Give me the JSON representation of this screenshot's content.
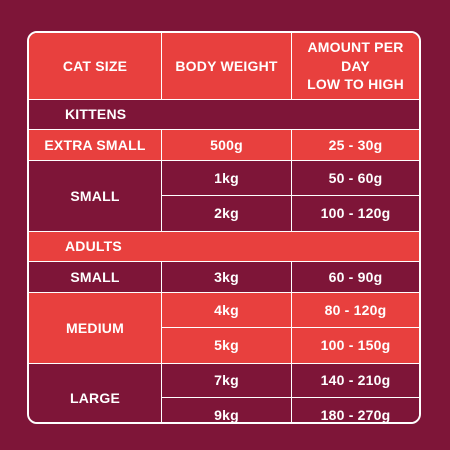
{
  "headers": {
    "cat_size": "CAT SIZE",
    "body_weight": "BODY WEIGHT",
    "amount_line1": "AMOUNT PER DAY",
    "amount_line2": "LOW TO HIGH"
  },
  "sections": {
    "kittens": "KITTENS",
    "adults": "ADULTS"
  },
  "kittens": [
    {
      "size": "EXTRA SMALL",
      "rows": [
        {
          "weight": "500g",
          "amount": "25 - 30g"
        }
      ]
    },
    {
      "size": "SMALL",
      "rows": [
        {
          "weight": "1kg",
          "amount": "50 - 60g"
        },
        {
          "weight": "2kg",
          "amount": "100 - 120g"
        }
      ]
    }
  ],
  "adults": [
    {
      "size": "SMALL",
      "rows": [
        {
          "weight": "3kg",
          "amount": "60 - 90g"
        }
      ]
    },
    {
      "size": "MEDIUM",
      "rows": [
        {
          "weight": "4kg",
          "amount": "80 - 120g"
        },
        {
          "weight": "5kg",
          "amount": "100 - 150g"
        }
      ]
    },
    {
      "size": "LARGE",
      "rows": [
        {
          "weight": "7kg",
          "amount": "140 - 210g"
        },
        {
          "weight": "9kg",
          "amount": "180 - 270g"
        }
      ]
    }
  ],
  "colors": {
    "background": "#7e1538",
    "accent_red": "#e8403e",
    "text": "#ffffff"
  }
}
